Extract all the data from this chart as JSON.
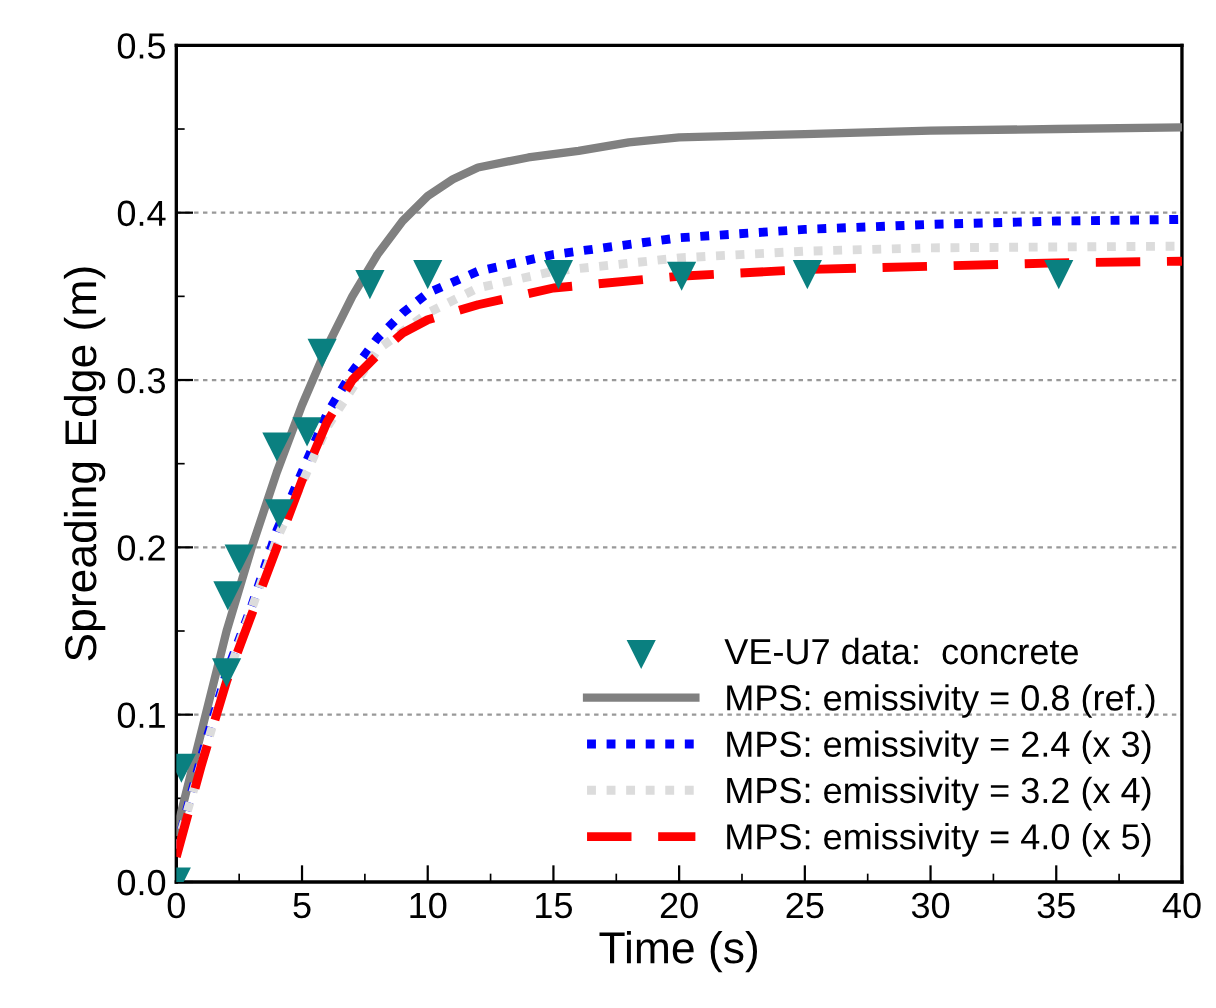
{
  "chart_data": {
    "type": "line",
    "xlabel": "Time (s)",
    "ylabel": "Spreading Edge (m)",
    "xlim": [
      0,
      40
    ],
    "xticks": [
      0,
      5,
      10,
      15,
      20,
      25,
      30,
      35,
      40
    ],
    "ylim": [
      0,
      0.5
    ],
    "yticks": [
      {
        "value": 0,
        "label": "0.0"
      },
      0.1,
      0.2,
      0.3,
      0.4,
      0.5
    ],
    "grid": "y",
    "legend": "bottom right",
    "series": [
      {
        "name": "VE-U7 data:  concrete",
        "type": "scatter",
        "marker": "triangle",
        "color": "#0a8080",
        "x": [
          0,
          0.2,
          2.0,
          2.05,
          2.5,
          4.0,
          4.1,
          5.2,
          5.8,
          7.7,
          10.0,
          15.2,
          20.1,
          25.1,
          35.1
        ],
        "values": [
          0,
          0.068,
          0.125,
          0.171,
          0.193,
          0.26,
          0.22,
          0.269,
          0.316,
          0.357,
          0.363,
          0.363,
          0.362,
          0.363,
          0.363
        ]
      },
      {
        "name": "MPS: emissivity = 0.8 (ref.)",
        "line_style": "solid",
        "color": "#808080",
        "x": [
          0,
          1,
          2,
          3,
          4,
          5,
          6,
          7,
          8,
          9,
          10,
          11,
          12,
          14,
          16,
          18,
          20,
          25,
          30,
          35,
          40
        ],
        "values": [
          0.03,
          0.09,
          0.15,
          0.2,
          0.245,
          0.285,
          0.32,
          0.35,
          0.375,
          0.395,
          0.41,
          0.42,
          0.427,
          0.433,
          0.437,
          0.442,
          0.445,
          0.447,
          0.449,
          0.45,
          0.451
        ]
      },
      {
        "name": "MPS: emissivity = 2.4 (x 3)",
        "line_style": "dotted",
        "color": "#0000ff",
        "x": [
          0,
          1,
          2,
          3,
          4,
          5,
          6,
          7,
          8,
          9,
          10,
          12,
          15,
          20,
          25,
          30,
          35,
          40
        ],
        "values": [
          0.02,
          0.075,
          0.125,
          0.165,
          0.21,
          0.245,
          0.28,
          0.305,
          0.325,
          0.34,
          0.352,
          0.365,
          0.375,
          0.385,
          0.39,
          0.393,
          0.395,
          0.396
        ]
      },
      {
        "name": "MPS: emissivity = 3.2 (x 4)",
        "line_style": "dotted",
        "color": "#dcdcdc",
        "x": [
          0,
          2,
          4,
          6,
          8,
          10,
          12,
          15,
          20,
          25,
          30,
          40
        ],
        "values": [
          0.02,
          0.122,
          0.205,
          0.272,
          0.318,
          0.34,
          0.355,
          0.365,
          0.373,
          0.377,
          0.379,
          0.38
        ]
      },
      {
        "name": "MPS: emissivity = 4.0 (x 5)",
        "line_style": "dashed",
        "color": "#ff0000",
        "x": [
          0,
          1,
          2,
          3,
          4,
          5,
          6,
          7,
          8,
          9,
          10,
          12,
          15,
          20,
          25,
          30,
          35,
          40
        ],
        "values": [
          0.015,
          0.07,
          0.12,
          0.16,
          0.2,
          0.24,
          0.275,
          0.3,
          0.315,
          0.328,
          0.336,
          0.345,
          0.355,
          0.362,
          0.366,
          0.368,
          0.37,
          0.371
        ]
      }
    ]
  }
}
